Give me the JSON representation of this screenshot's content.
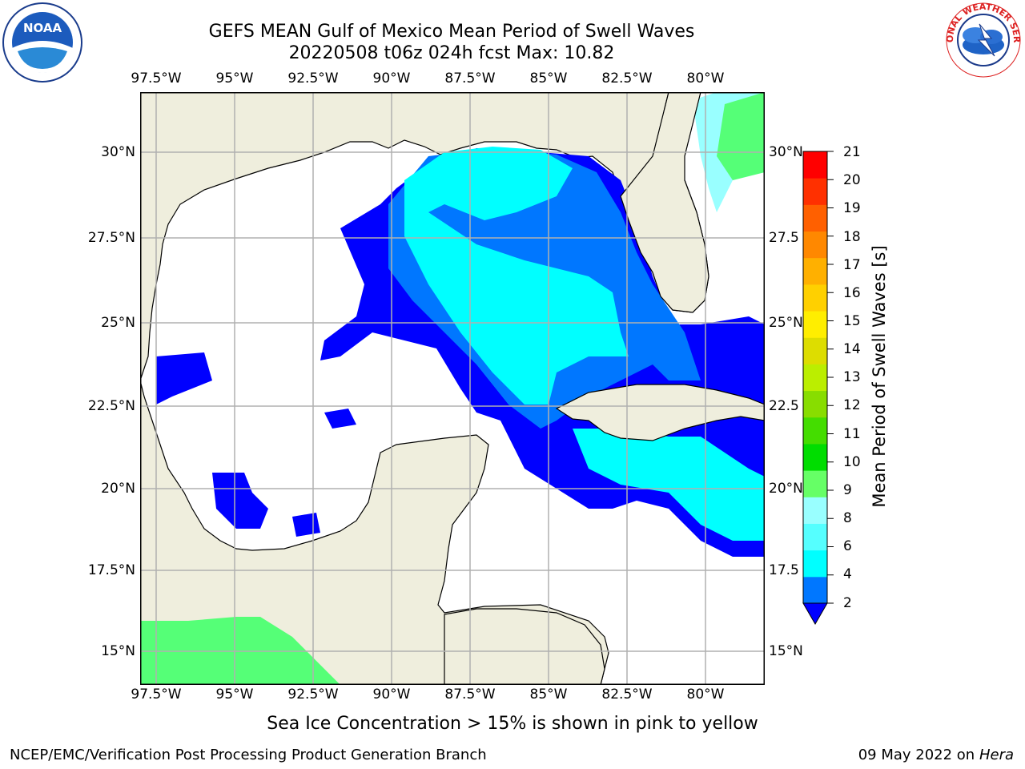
{
  "title": {
    "line1": "GEFS MEAN Gulf of Mexico Mean Period of Swell Waves",
    "line2": "20220508 t06z 024h fcst   Max: 10.82"
  },
  "map": {
    "lon_labels": [
      "97.5°W",
      "95°W",
      "92.5°W",
      "90°W",
      "87.5°W",
      "85°W",
      "82.5°W",
      "80°W"
    ],
    "lat_labels_left": [
      "30°N",
      "27.5°N",
      "25°N",
      "22.5°N",
      "20°N",
      "17.5°N",
      "15°N"
    ],
    "lat_labels_right": [
      "30°N",
      "27.5",
      "25°N",
      "22.5",
      "20°N",
      "17.5",
      "15°N"
    ],
    "colors": {
      "land": "#efeedd",
      "ocean": "#ffffff",
      "grid": "#b0b0b0"
    }
  },
  "colorbar": {
    "title": "Mean Period of Swell Waves [s]",
    "ticks": [
      "21",
      "20",
      "19",
      "18",
      "17",
      "16",
      "15",
      "14",
      "13",
      "12",
      "11",
      "10",
      "9",
      "8",
      "6",
      "4",
      "2"
    ],
    "colors": [
      "#0000ff",
      "#0077ff",
      "#00ffff",
      "#55ffff",
      "#99ffff",
      "#66ff66",
      "#00dd00",
      "#44dd00",
      "#88dd00",
      "#bbee00",
      "#dddd00",
      "#ffee00",
      "#ffd000",
      "#ffb000",
      "#ff8800",
      "#ff6000",
      "#ff3000",
      "#ff0000"
    ]
  },
  "footer": {
    "ice_note": "Sea Ice Concentration > 15% is shown in pink to yellow",
    "credit": "NCEP/EMC/Verification Post Processing Product Generation Branch",
    "date": "09 May 2022 on",
    "host": "Hera"
  },
  "logos": {
    "left_text": "NOAA",
    "right_text": "NATIONAL WEATHER SERVICE"
  }
}
